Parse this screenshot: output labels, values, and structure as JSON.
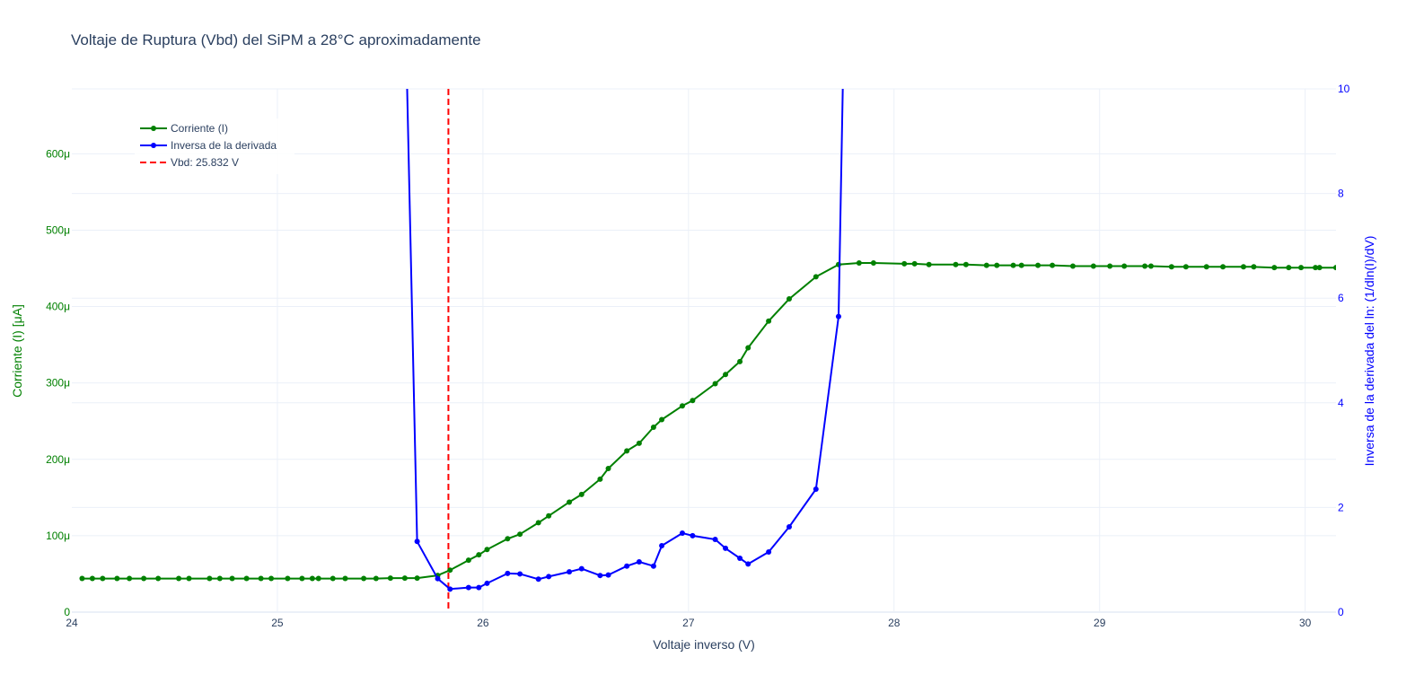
{
  "chart_data": {
    "type": "line",
    "title": "Voltaje de Ruptura (Vbd) del SiPM a 28°C aproximadamente",
    "xlabel": "Voltaje inverso (V)",
    "ylabel_left": "Corriente (I) [μA]",
    "ylabel_right": "Inversa de la derivada del ln: (1/dln(I)/dV)",
    "xlim": [
      24,
      30.15
    ],
    "ylim_left": [
      0,
      0.000685
    ],
    "ylim_right": [
      0,
      10
    ],
    "grid": true,
    "legend_position": "top-left",
    "colors": {
      "current": "#008000",
      "inverse": "#0000ff",
      "vbd": "#ff0000",
      "title": "#2a3f5f",
      "grid": "#ebf0f8"
    },
    "x_ticks": [
      {
        "v": 24,
        "label": "24"
      },
      {
        "v": 25,
        "label": "25"
      },
      {
        "v": 26,
        "label": "26"
      },
      {
        "v": 27,
        "label": "27"
      },
      {
        "v": 28,
        "label": "28"
      },
      {
        "v": 29,
        "label": "29"
      },
      {
        "v": 30,
        "label": "30"
      }
    ],
    "y_left_ticks": [
      {
        "v": 0,
        "label": "0"
      },
      {
        "v": 0.0001,
        "label": "100μ"
      },
      {
        "v": 0.0002,
        "label": "200μ"
      },
      {
        "v": 0.0003,
        "label": "300μ"
      },
      {
        "v": 0.0004,
        "label": "400μ"
      },
      {
        "v": 0.0005,
        "label": "500μ"
      },
      {
        "v": 0.0006,
        "label": "600μ"
      }
    ],
    "y_right_ticks": [
      {
        "v": 0,
        "label": "0"
      },
      {
        "v": 2,
        "label": "2"
      },
      {
        "v": 4,
        "label": "4"
      },
      {
        "v": 6,
        "label": "6"
      },
      {
        "v": 8,
        "label": "8"
      },
      {
        "v": 10,
        "label": "10"
      }
    ],
    "vbd": {
      "x": 25.832,
      "name": "Vbd: 25.832 V"
    },
    "series": [
      {
        "name": "Corriente (I)",
        "axis": "left",
        "x": [
          24.05,
          24.1,
          24.15,
          24.22,
          24.28,
          24.35,
          24.42,
          24.52,
          24.57,
          24.67,
          24.72,
          24.78,
          24.85,
          24.92,
          24.97,
          25.05,
          25.12,
          25.17,
          25.2,
          25.27,
          25.33,
          25.42,
          25.48,
          25.55,
          25.62,
          25.68,
          25.78,
          25.84,
          25.93,
          25.98,
          26.02,
          26.12,
          26.18,
          26.27,
          26.32,
          26.42,
          26.48,
          26.57,
          26.61,
          26.7,
          26.76,
          26.83,
          26.87,
          26.97,
          27.02,
          27.13,
          27.18,
          27.25,
          27.29,
          27.39,
          27.49,
          27.62,
          27.73,
          27.83,
          27.9,
          28.05,
          28.1,
          28.17,
          28.3,
          28.35,
          28.45,
          28.5,
          28.58,
          28.62,
          28.7,
          28.77,
          28.87,
          28.97,
          29.05,
          29.12,
          29.22,
          29.25,
          29.35,
          29.42,
          29.52,
          29.6,
          29.7,
          29.75,
          29.85,
          29.92,
          29.98,
          30.05,
          30.07,
          30.15
        ],
        "y": [
          4.4e-05,
          4.4e-05,
          4.4e-05,
          4.4e-05,
          4.4e-05,
          4.4e-05,
          4.4e-05,
          4.4e-05,
          4.4e-05,
          4.4e-05,
          4.4e-05,
          4.4e-05,
          4.4e-05,
          4.4e-05,
          4.4e-05,
          4.4e-05,
          4.4e-05,
          4.4e-05,
          4.4e-05,
          4.4e-05,
          4.4e-05,
          4.4e-05,
          4.4e-05,
          4.45e-05,
          4.45e-05,
          4.45e-05,
          4.8e-05,
          5.5e-05,
          6.8e-05,
          7.5e-05,
          8.2e-05,
          9.6e-05,
          0.000102,
          0.000117,
          0.000126,
          0.000144,
          0.000154,
          0.000174,
          0.000188,
          0.000211,
          0.000221,
          0.000242,
          0.000252,
          0.00027,
          0.000277,
          0.000299,
          0.000311,
          0.000328,
          0.000346,
          0.000381,
          0.00041,
          0.000439,
          0.000455,
          0.000457,
          0.000457,
          0.000456,
          0.000456,
          0.000455,
          0.000455,
          0.000455,
          0.000454,
          0.000454,
          0.000454,
          0.000454,
          0.000454,
          0.000454,
          0.000453,
          0.000453,
          0.000453,
          0.000453,
          0.000453,
          0.000453,
          0.000452,
          0.000452,
          0.000452,
          0.000452,
          0.000452,
          0.000452,
          0.000451,
          0.000451,
          0.000451,
          0.000451,
          0.000451,
          0.000451
        ]
      },
      {
        "name": "Inversa de la derivada",
        "axis": "right",
        "x": [
          25.62,
          25.68,
          25.78,
          25.84,
          25.93,
          25.98,
          26.02,
          26.12,
          26.18,
          26.27,
          26.32,
          26.42,
          26.48,
          26.57,
          26.61,
          26.7,
          26.76,
          26.83,
          26.87,
          26.97,
          27.02,
          27.13,
          27.18,
          27.25,
          27.29,
          27.39,
          27.49,
          27.62,
          27.73,
          27.76
        ],
        "y": [
          12,
          1.35,
          0.64,
          0.44,
          0.47,
          0.47,
          0.55,
          0.74,
          0.73,
          0.63,
          0.68,
          0.77,
          0.83,
          0.7,
          0.71,
          0.88,
          0.96,
          0.88,
          1.27,
          1.51,
          1.46,
          1.39,
          1.22,
          1.03,
          0.92,
          1.15,
          1.63,
          2.35,
          5.65,
          12
        ]
      }
    ]
  }
}
